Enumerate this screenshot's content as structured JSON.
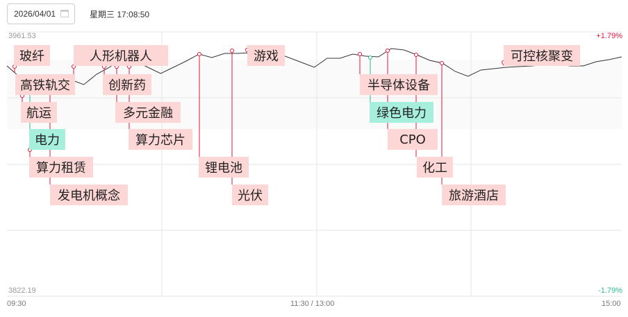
{
  "header": {
    "date": "2026/04/01",
    "datetime_text": "星期三 17:08:50",
    "calendar_icon": "calendar-icon"
  },
  "chart_data": {
    "type": "line",
    "ylim": [
      3822.19,
      3961.53
    ],
    "y_top_label": "3961.53",
    "y_bottom_label": "3822.19",
    "pct_top": "+1.79%",
    "pct_bottom": "-1.79%",
    "x_ticks": [
      "09:30",
      "11:30 / 13:00",
      "15:00"
    ],
    "grid": true,
    "values": [
      3943.61,
      3937.76,
      3937.76,
      3938.86,
      3938.86,
      3936.3,
      3933.74,
      3939.22,
      3942.88,
      3947.63,
      3946.17,
      3942.88,
      3939.59,
      3942.88,
      3946.17,
      3949.83,
      3948.0,
      3950.19,
      3950.19,
      3950.56,
      3949.83,
      3950.56,
      3948.0,
      3945.44,
      3942.88,
      3947.63,
      3947.63,
      3949.83,
      3948.73,
      3948.36,
      3952.75,
      3952.02,
      3949.46,
      3946.54,
      3945.07,
      3940.69,
      3938.13,
      3941.42,
      3942.15,
      3942.88,
      3943.24,
      3943.61,
      3944.34,
      3944.34,
      3943.61,
      3943.61,
      3945.8,
      3946.9,
      3948.36
    ],
    "colors": {
      "line": "#333333",
      "up": "#e8143c",
      "down": "#2fb88f",
      "tag_red": "#fdd6d6",
      "tag_green": "#a6efdc"
    }
  },
  "tags": [
    "玻纤",
    "高铁轨交",
    "航运",
    "电力",
    "算力租赁",
    "发电机概念",
    "人形机器人",
    "创新药",
    "多元金融",
    "算力芯片",
    "锂电池",
    "光伏",
    "游戏",
    "半导体设备",
    "绿色电力",
    "CPO",
    "化工",
    "旅游酒店",
    "可控核聚变"
  ]
}
